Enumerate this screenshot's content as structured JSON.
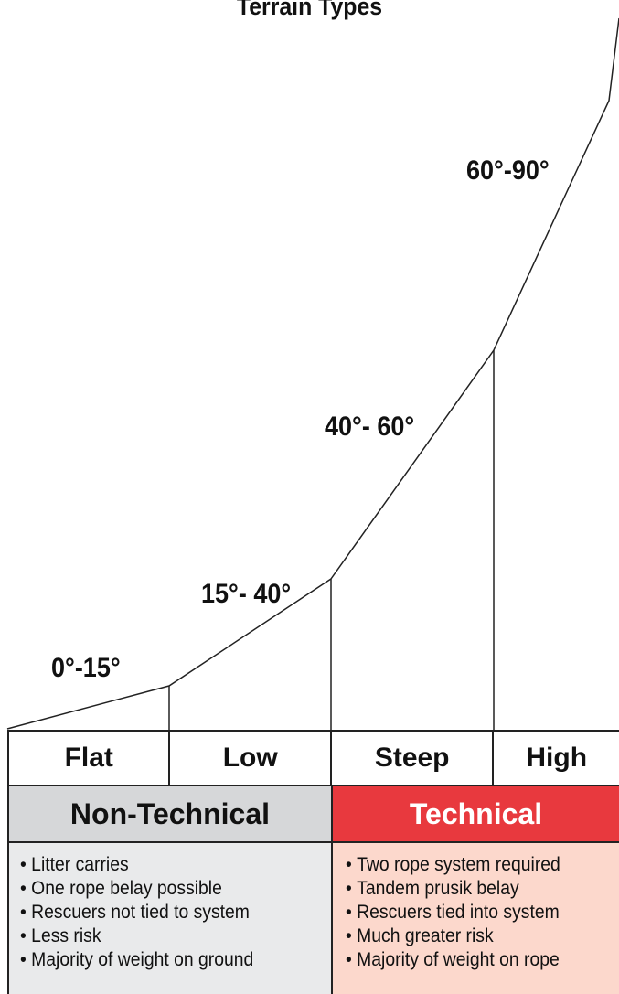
{
  "title": "Terrain Types",
  "angles": {
    "flat": "0°-15°",
    "low": "15°- 40°",
    "steep": "40°- 60°",
    "high": "60°-90°"
  },
  "terrain": {
    "flat": "Flat",
    "low": "Low",
    "steep": "Steep",
    "high": "High"
  },
  "classes": {
    "non_technical": "Non-Technical",
    "technical": "Technical"
  },
  "non_technical_items": [
    "Litter carries",
    "One rope belay possible",
    "Rescuers not tied to system",
    "Less risk",
    "Majority of weight on ground"
  ],
  "technical_items": [
    "Two rope system required",
    "Tandem prusik belay",
    "Rescuers tied into system",
    "Much greater risk",
    "Majority of weight on rope"
  ],
  "colors": {
    "non_technical_header": "#d6d7d9",
    "non_technical_body": "#e9eaeb",
    "technical_header": "#e8393e",
    "technical_body": "#fcd8cc"
  }
}
